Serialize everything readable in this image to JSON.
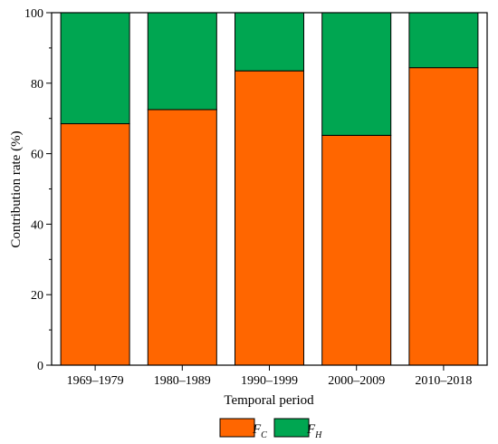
{
  "chart_data": {
    "type": "bar",
    "stacked": true,
    "categories": [
      "1969–1979",
      "1980–1989",
      "1990–1999",
      "2000–2009",
      "2010–2018"
    ],
    "series": [
      {
        "name": "F_C",
        "label_main": "F",
        "label_sub": "C",
        "color": "#ff6600",
        "values": [
          68.5,
          72.5,
          83.5,
          65.2,
          84.4
        ]
      },
      {
        "name": "F_H",
        "label_main": "F",
        "label_sub": "H",
        "color": "#00a651",
        "values": [
          31.5,
          27.5,
          16.5,
          34.8,
          15.6
        ]
      }
    ],
    "xlabel": "Temporal period",
    "ylabel": "Contribution rate (%)",
    "ylim": [
      0,
      100
    ],
    "yticks": [
      0,
      20,
      40,
      60,
      80,
      100
    ],
    "grid": false,
    "legend_position": "bottom"
  }
}
